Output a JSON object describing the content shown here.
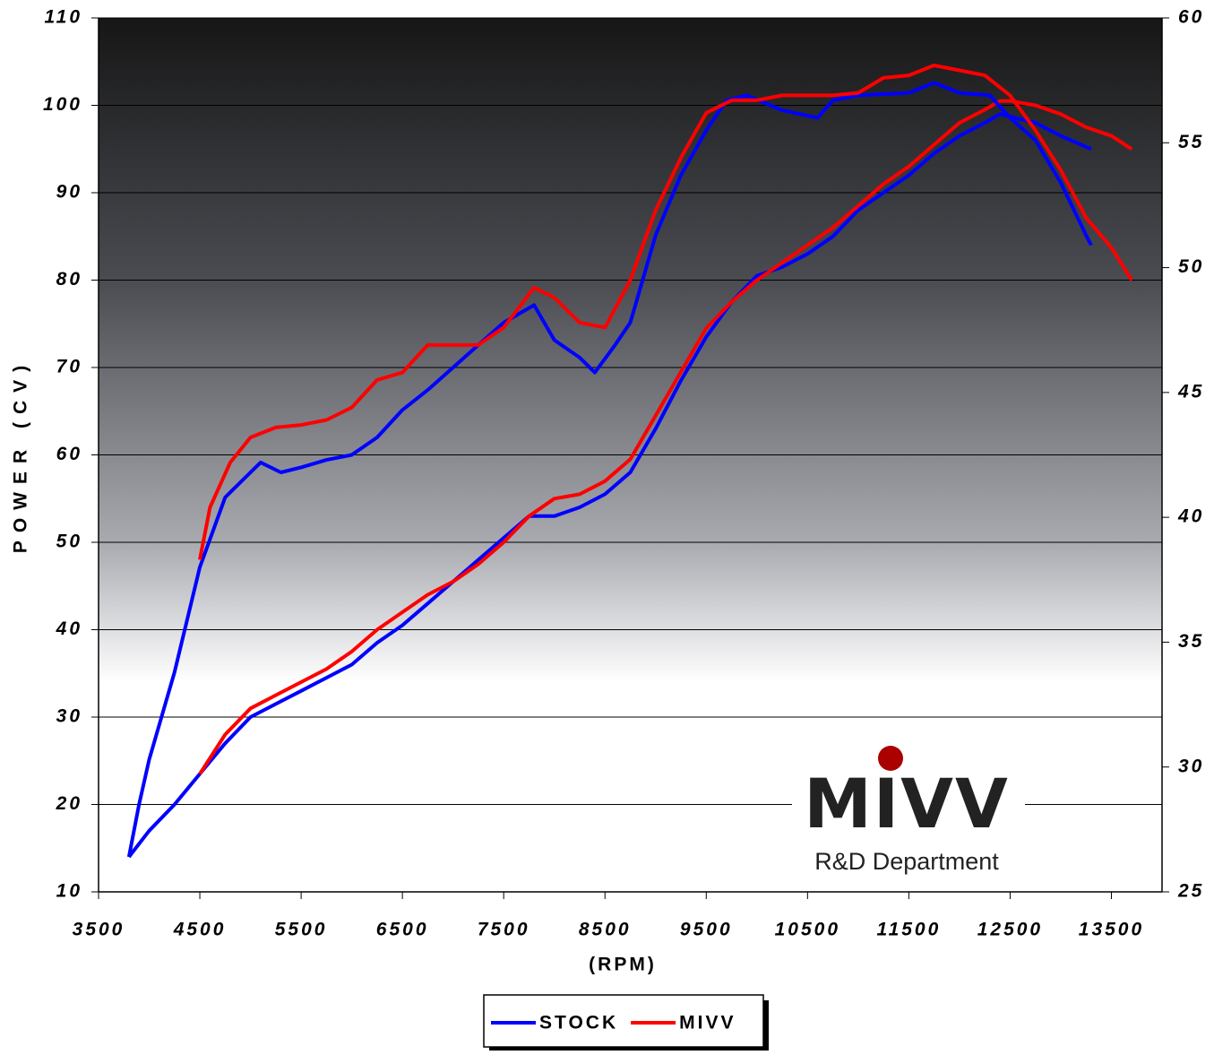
{
  "chart_data": {
    "type": "line",
    "xlabel": "(RPM)",
    "ylabel": "POWER (CV)",
    "xlim": [
      3500,
      14000
    ],
    "xticks": [
      3500,
      4500,
      5500,
      6500,
      7500,
      8500,
      9500,
      10500,
      11500,
      12500,
      13500
    ],
    "ylim": [
      10,
      110
    ],
    "yticks": [
      10,
      20,
      30,
      40,
      50,
      60,
      70,
      80,
      90,
      100,
      110
    ],
    "y2lim": [
      25,
      60
    ],
    "y2ticks": [
      25,
      30,
      35,
      40,
      45,
      50,
      55,
      60
    ],
    "grid": true,
    "legend": "bottom",
    "logo": {
      "name": "MIVV",
      "subtitle": "R&D Department"
    },
    "series": [
      {
        "name": "STOCK",
        "color": "#0000ff",
        "x": [
          3800,
          4000,
          4250,
          4500,
          4750,
          5000,
          5250,
          5500,
          5750,
          6000,
          6250,
          6500,
          6750,
          7000,
          7250,
          7500,
          7750,
          8000,
          8250,
          8500,
          8750,
          9000,
          9250,
          9500,
          9750,
          10000,
          10250,
          10500,
          10750,
          11000,
          11250,
          11500,
          11750,
          12000,
          12250,
          12400,
          12750,
          13000,
          13300
        ],
        "values": [
          14,
          17,
          20,
          23.5,
          27,
          30,
          31.5,
          33,
          34.5,
          36,
          38.5,
          40.5,
          43,
          45.5,
          48,
          50.5,
          53,
          53,
          54,
          55.5,
          58,
          63,
          68.5,
          73.5,
          77.5,
          80.5,
          81.5,
          83,
          85,
          88,
          90,
          92,
          94.5,
          96.5,
          98,
          99,
          98,
          96.5,
          95
        ]
      },
      {
        "name": "MIVV",
        "color": "#ff0000",
        "x": [
          4500,
          4750,
          5000,
          5250,
          5500,
          5750,
          6000,
          6250,
          6500,
          6750,
          7000,
          7250,
          7500,
          7750,
          8000,
          8250,
          8500,
          8750,
          9000,
          9250,
          9500,
          9750,
          10000,
          10250,
          10500,
          10750,
          11000,
          11250,
          11500,
          11750,
          12000,
          12250,
          12400,
          12500,
          12750,
          13000,
          13250,
          13500,
          13700
        ],
        "values": [
          23.5,
          28,
          31,
          32.5,
          34,
          35.5,
          37.5,
          40,
          42,
          44,
          45.5,
          47.5,
          50,
          53,
          55,
          55.5,
          57,
          59.5,
          64.5,
          69.5,
          74.5,
          77.5,
          80,
          82,
          84,
          86,
          88.5,
          91,
          93,
          95.5,
          98,
          99.5,
          100.5,
          100.5,
          100,
          99,
          97.5,
          96.5,
          95
        ]
      },
      {
        "name": "STOCK",
        "color": "#0000ff",
        "axis": "y2",
        "x": [
          3800,
          3900,
          4000,
          4250,
          4500,
          4750,
          5000,
          5100,
          5300,
          5500,
          5750,
          6000,
          6250,
          6500,
          6750,
          7000,
          7250,
          7500,
          7800,
          8000,
          8250,
          8400,
          8600,
          8750,
          9000,
          9250,
          9500,
          9700,
          9900,
          10250,
          10600,
          10750,
          11000,
          11500,
          11750,
          12000,
          12300,
          12500,
          12750,
          13000,
          13250,
          13300
        ],
        "values": [
          26.4,
          28.5,
          30.3,
          33.8,
          38,
          40.8,
          41.8,
          42.2,
          41.8,
          42,
          42.3,
          42.5,
          43.2,
          44.3,
          45.1,
          46,
          46.9,
          47.8,
          48.5,
          47.1,
          46.4,
          45.8,
          46.9,
          47.8,
          51.3,
          53.7,
          55.5,
          56.7,
          56.9,
          56.3,
          56,
          56.7,
          56.9,
          57,
          57.4,
          57,
          56.9,
          56,
          55.1,
          53.4,
          51.3,
          50.9
        ]
      },
      {
        "name": "MIVV",
        "color": "#ff0000",
        "axis": "y2",
        "x": [
          4500,
          4600,
          4800,
          5000,
          5250,
          5500,
          5750,
          6000,
          6250,
          6500,
          6750,
          7000,
          7250,
          7500,
          7800,
          8000,
          8250,
          8500,
          8750,
          9000,
          9250,
          9500,
          9750,
          10000,
          10250,
          10750,
          11000,
          11250,
          11500,
          11750,
          12000,
          12250,
          12500,
          12750,
          13000,
          13250,
          13500,
          13700
        ],
        "values": [
          38.3,
          40.4,
          42.2,
          43.2,
          43.6,
          43.7,
          43.9,
          44.4,
          45.5,
          45.8,
          46.9,
          46.9,
          46.9,
          47.6,
          49.2,
          48.8,
          47.8,
          47.6,
          49.5,
          52.3,
          54.4,
          56.2,
          56.7,
          56.7,
          56.9,
          56.9,
          57,
          57.6,
          57.7,
          58.1,
          57.9,
          57.7,
          56.9,
          55.5,
          53.9,
          52,
          50.8,
          49.5
        ]
      }
    ]
  }
}
